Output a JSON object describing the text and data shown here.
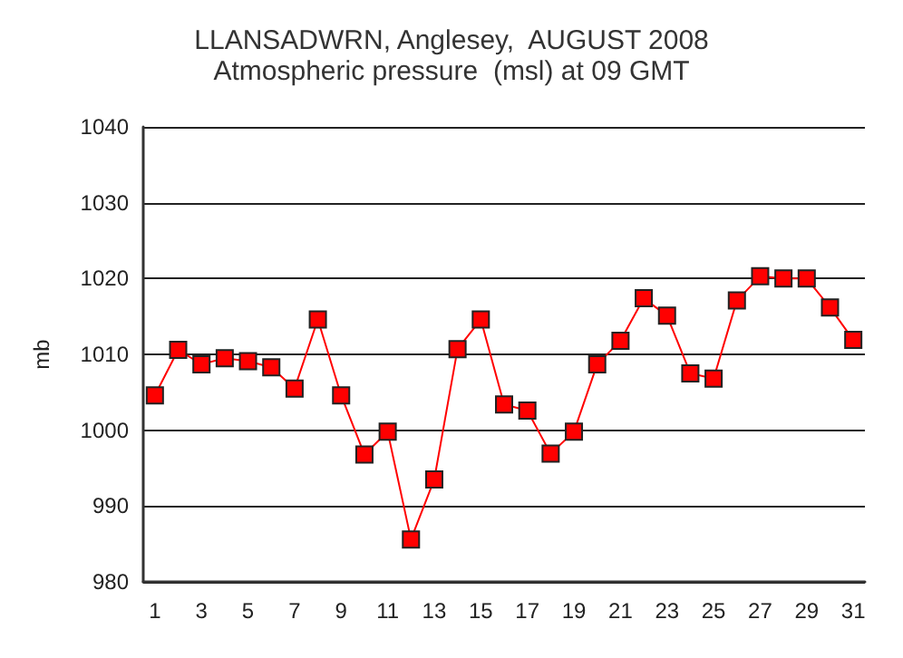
{
  "chart_data": {
    "type": "line",
    "title": "LLANSADWRN, Anglesey,  AUGUST 2008",
    "subtitle": "Atmospheric pressure  (msl) at 09 GMT",
    "ylabel": "mb",
    "x": [
      1,
      2,
      3,
      4,
      5,
      6,
      7,
      8,
      9,
      10,
      11,
      12,
      13,
      14,
      15,
      16,
      17,
      18,
      19,
      20,
      21,
      22,
      23,
      24,
      25,
      26,
      27,
      28,
      29,
      30,
      31
    ],
    "series": [
      {
        "color": "#ff0000",
        "values": [
          1004.6,
          1010.6,
          1008.7,
          1009.5,
          1009.1,
          1008.3,
          1005.5,
          1014.6,
          1004.6,
          996.8,
          999.8,
          985.6,
          993.5,
          1010.7,
          1014.6,
          1003.4,
          1002.6,
          996.9,
          999.8,
          1008.7,
          1011.8,
          1017.4,
          1015.1,
          1007.5,
          1006.8,
          1017.1,
          1020.3,
          1020,
          1020,
          1016.2,
          1011.9
        ]
      }
    ],
    "xlim": [
      0.5,
      31.5
    ],
    "xticks": [
      1,
      3,
      5,
      7,
      9,
      11,
      13,
      15,
      17,
      19,
      21,
      23,
      25,
      27,
      29,
      31
    ],
    "ylim": [
      980,
      1040
    ],
    "yticks": [
      980,
      990,
      1000,
      1010,
      1020,
      1030,
      1040
    ],
    "grid": "y",
    "marker": "square",
    "line_style": "solid"
  }
}
